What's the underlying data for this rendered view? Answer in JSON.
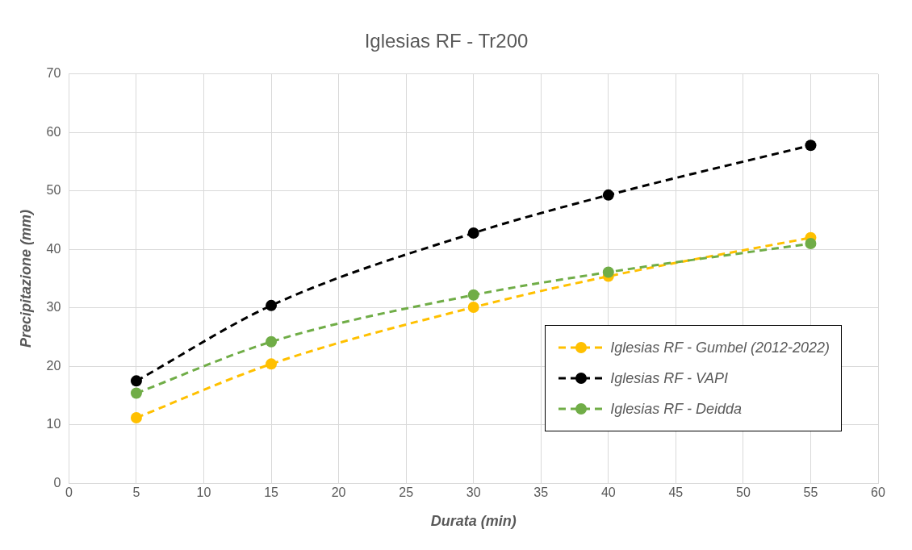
{
  "chart_data": {
    "type": "line",
    "title": "Iglesias RF - Tr200",
    "xlabel": "Durata (min)",
    "ylabel": "Precipitazione (mm)",
    "x": [
      5,
      15,
      30,
      40,
      55
    ],
    "series": [
      {
        "name": "Iglesias RF - Gumbel (2012-2022)",
        "color": "#ffc000",
        "values": [
          11.2,
          20.4,
          30.1,
          35.4,
          42.0
        ]
      },
      {
        "name": "Iglesias RF - VAPI",
        "color": "#000000",
        "values": [
          17.5,
          30.4,
          42.8,
          49.3,
          57.8
        ]
      },
      {
        "name": "Iglesias RF - Deidda",
        "color": "#70ad47",
        "values": [
          15.4,
          24.2,
          32.2,
          36.1,
          41.0
        ]
      }
    ],
    "xlim": [
      0,
      60
    ],
    "xticks": [
      0,
      5,
      10,
      15,
      20,
      25,
      30,
      35,
      40,
      45,
      50,
      55,
      60
    ],
    "ylim": [
      0,
      70
    ],
    "yticks": [
      0,
      10,
      20,
      30,
      40,
      50,
      60,
      70
    ],
    "grid": true,
    "legend": "right",
    "marker": "circle",
    "line_style": "dashed"
  }
}
